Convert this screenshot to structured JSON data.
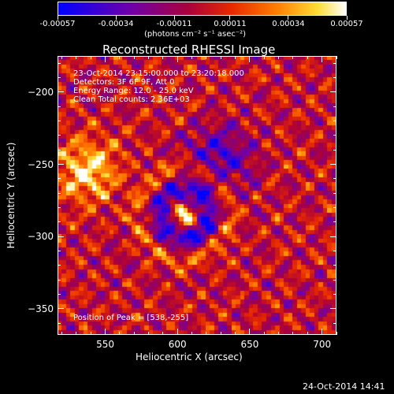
{
  "colorbar": {
    "tick_labels": [
      "-0.00057",
      "-0.00034",
      "-0.00011",
      "0.00011",
      "0.00034",
      "0.00057"
    ],
    "units": "(photons cm⁻² s⁻¹ asec⁻²)",
    "range": [
      -0.00057,
      0.00057
    ]
  },
  "info": {
    "time_range": "23-Oct-2014 23:15:00.000 to 23:20:18.000",
    "detectors": "Detectors: 3F 6F 9F, Att 0",
    "energy_range": "Energy Range: 12.0 - 25.0 keV",
    "clean_counts": "Clean    Total counts: 2.36E+03",
    "peak_position": "Position of Peak = [538,-255]"
  },
  "footer": {
    "timestamp": "24-Oct-2014 14:41"
  },
  "colors": {
    "frame": "#ffffff",
    "background": "#000000"
  },
  "chart_data": {
    "type": "heatmap",
    "title": "Reconstructed RHESSI Image",
    "xlabel": "Heliocentric X (arcsec)",
    "ylabel": "Heliocentric Y (arcsec)",
    "xlim": [
      517,
      710
    ],
    "ylim": [
      -368,
      -175
    ],
    "x_ticks": [
      550,
      600,
      650,
      700
    ],
    "y_ticks": [
      -200,
      -250,
      -300,
      -350
    ],
    "colormap": "blue-purple-red-yellow-white",
    "peak": [
      538,
      -255
    ],
    "grid": false
  }
}
